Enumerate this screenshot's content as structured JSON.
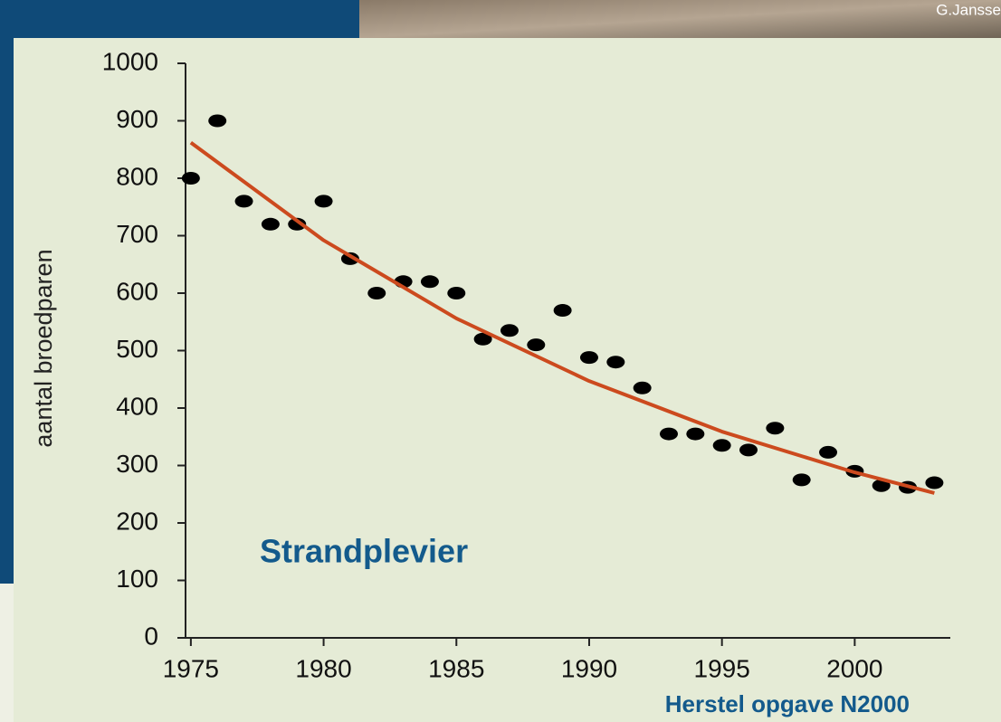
{
  "photo_credit": "G.Jansse",
  "footer": "Herstel opgave N2000",
  "chart_data": {
    "type": "scatter",
    "annotation": "Strandplevier",
    "y_label": "aantal broedparen",
    "x": [
      1975,
      1976,
      1977,
      1978,
      1979,
      1980,
      1981,
      1982,
      1983,
      1984,
      1985,
      1986,
      1987,
      1988,
      1989,
      1990,
      1991,
      1992,
      1993,
      1994,
      1995,
      1996,
      1997,
      1998,
      1999,
      2000,
      2001,
      2002,
      2003
    ],
    "series": [
      {
        "color": "#000000",
        "values": [
          800,
          900,
          760,
          720,
          720,
          760,
          660,
          600,
          620,
          620,
          600,
          520,
          535,
          510,
          570,
          488,
          480,
          435,
          355,
          355,
          335,
          327,
          365,
          275,
          323,
          290,
          265,
          262,
          270
        ]
      }
    ],
    "trend": {
      "color": "#cc4a1e",
      "x": [
        1975,
        1980,
        1985,
        1990,
        1995,
        2000,
        2003
      ],
      "values": [
        862,
        692,
        556,
        447,
        359,
        288,
        252
      ]
    },
    "xlim": [
      1974.8,
      2003.6
    ],
    "ylim": [
      0,
      1000
    ],
    "xticks": [
      1975,
      1980,
      1985,
      1990,
      1995,
      2000
    ],
    "yticks": [
      0,
      100,
      200,
      300,
      400,
      500,
      600,
      700,
      800,
      900,
      1000
    ]
  }
}
